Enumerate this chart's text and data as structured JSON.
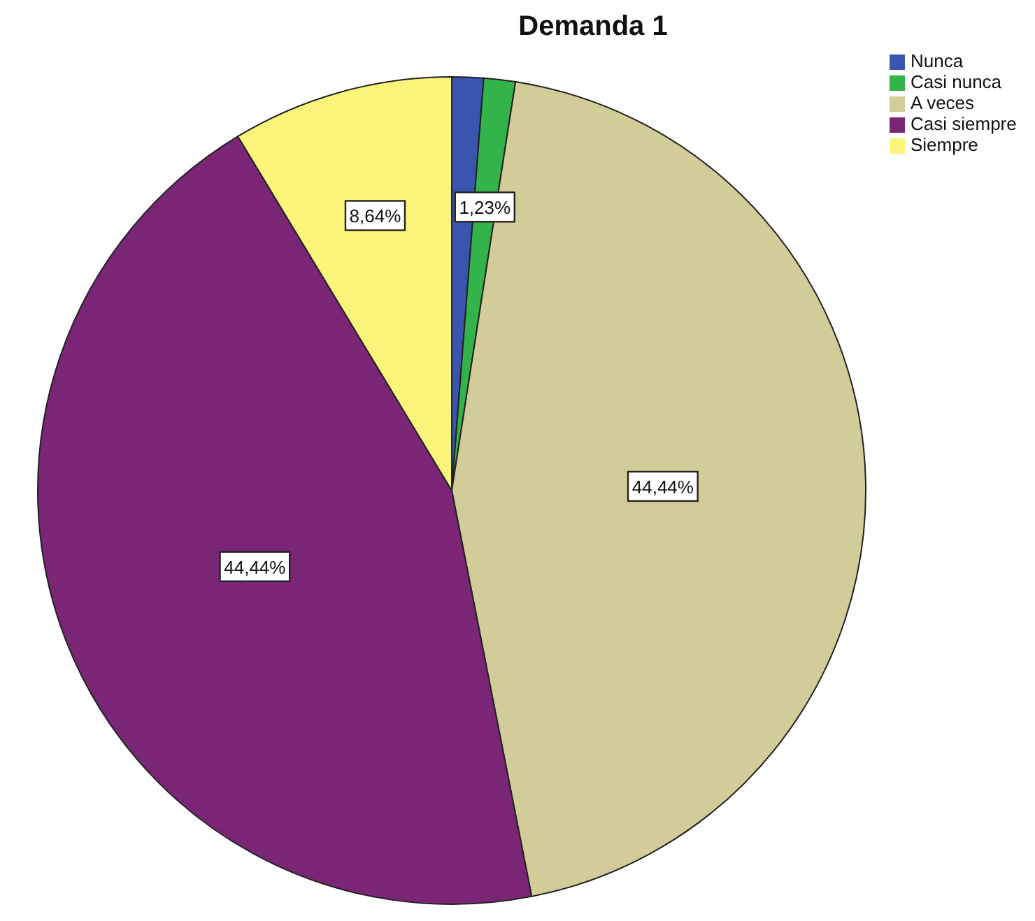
{
  "chart_data": {
    "type": "pie",
    "title": "Demanda 1",
    "categories": [
      "Nunca",
      "Casi nunca",
      "A veces",
      "Casi siempre",
      "Siempre"
    ],
    "values": [
      1.23,
      1.23,
      44.44,
      44.44,
      8.64
    ],
    "colors": [
      "#3a55b0",
      "#33b44a",
      "#d2cc98",
      "#7b2577",
      "#faf57a"
    ],
    "value_labels": [
      null,
      "1,23%",
      "44,44%",
      "44,44%",
      "8,64%"
    ],
    "legend": "top right"
  }
}
